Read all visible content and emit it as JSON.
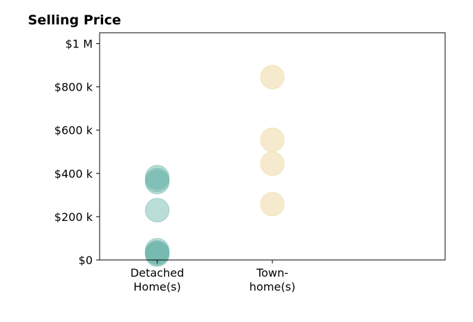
{
  "chart_data": {
    "type": "scatter",
    "title": "Selling Price",
    "xlabel": "",
    "ylabel": "",
    "categories": [
      [
        "Detached",
        "Home(s)"
      ],
      [
        "Town-",
        "home(s)"
      ]
    ],
    "xlim": [
      -0.5,
      2.5
    ],
    "ylim": [
      0,
      1050000
    ],
    "y_ticks": [
      {
        "value": 0,
        "label": "$0"
      },
      {
        "value": 200000,
        "label": "$200 k"
      },
      {
        "value": 400000,
        "label": "$400 k"
      },
      {
        "value": 600000,
        "label": "$600 k"
      },
      {
        "value": 800000,
        "label": "$800 k"
      },
      {
        "value": 1000000,
        "label": "$1 M"
      }
    ],
    "grid": false,
    "series": [
      {
        "category_index": 0,
        "color": "#69b3a8",
        "opacity": 0.45,
        "values": [
          370000,
          383000,
          360000,
          230000,
          45000,
          35000,
          30000,
          25000
        ]
      },
      {
        "category_index": 1,
        "color": "#eed9a6",
        "opacity": 0.55,
        "values": [
          845000,
          555000,
          445000,
          258000
        ]
      }
    ]
  }
}
